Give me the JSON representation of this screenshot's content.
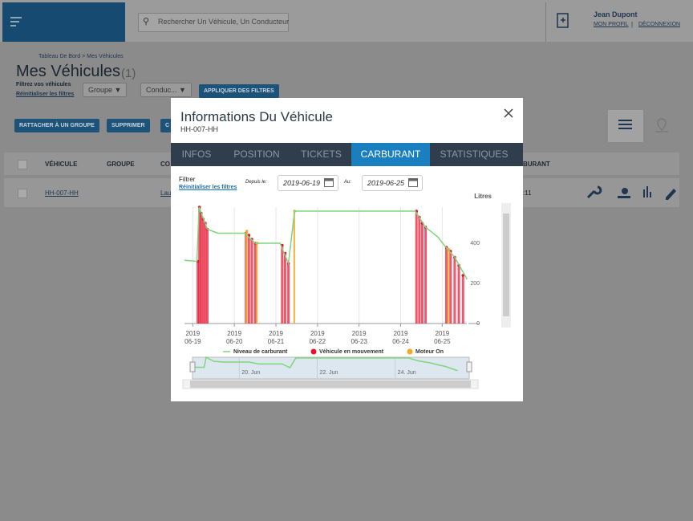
{
  "header": {
    "search_placeholder": "Rechercher Un Véhicule, Un Conducteur",
    "user_name": "Jean Dupont",
    "profile": "MON PROFIL",
    "separator": "|",
    "logout": "DÉCONNEXION"
  },
  "page": {
    "breadcrumb": "Tableau De Bord > Mes Véhicules",
    "title": "Mes Véhicules",
    "count": "(1)",
    "filter_label": "Filtrez vos véhicules",
    "reset": "Réinitialiser les filtres",
    "filters": [
      "Groupe",
      "Conduc..."
    ],
    "apply": "APPLIQUER DES FILTRES",
    "actions": [
      "RATTACHER À UN GROUPE",
      "SUPPRIMER",
      "C"
    ]
  },
  "table": {
    "headers": [
      "VÉHICULE",
      "GROUPE",
      "CO",
      "BURANT"
    ],
    "rows": [
      [
        "HH-007-HH",
        "Lau",
        ":11"
      ]
    ]
  },
  "modal": {
    "title": "Informations Du Véhicule",
    "subtitle": "HH-007-HH",
    "tabs": [
      "INFOS",
      "POSITION",
      "TICKETS",
      "CARBURANT",
      "STATISTIQUES"
    ],
    "active_tab": 3,
    "filter_label": "Filtrer",
    "reset": "Réinitialiser les filtres",
    "from_label": "Depuis le:",
    "from": "2019-06-19",
    "to_label": "Au:",
    "to": "2019-06-25"
  },
  "chart_data": {
    "type": "line",
    "y_label": "Litres",
    "xlim": [
      18.8,
      25.9
    ],
    "xticks": [
      {
        "value": 19,
        "label": "2019\n06-19"
      },
      {
        "value": 20,
        "label": "2019\n06-20"
      },
      {
        "value": 21,
        "label": "2019\n06-21"
      },
      {
        "value": 22,
        "label": "2019\n06-22"
      },
      {
        "value": 23,
        "label": "2019\n06-23"
      },
      {
        "value": 24,
        "label": "2019\n06-24"
      },
      {
        "value": 25,
        "label": "2019\n06-25"
      }
    ],
    "ylim": [
      0,
      580
    ],
    "yticks": [
      0,
      200,
      400
    ],
    "grid": true,
    "navigator_ticks": [
      {
        "value": 20,
        "label": "20. Jun"
      },
      {
        "value": 22,
        "label": "22. Jun"
      },
      {
        "value": 24,
        "label": "24. Jun"
      }
    ],
    "series": [
      {
        "name": "Niveau de carburant",
        "type": "line",
        "color": "#7ed67e",
        "x": [
          18.8,
          19.1,
          19.15,
          19.35,
          19.6,
          20.25,
          20.5,
          21.1,
          21.3,
          21.45,
          24.35,
          24.6,
          24.9,
          25.05,
          25.3,
          25.6
        ],
        "values": [
          315,
          310,
          580,
          470,
          450,
          450,
          400,
          400,
          300,
          560,
          560,
          480,
          430,
          390,
          330,
          220
        ]
      },
      {
        "name": "Véhicule en mouvement",
        "type": "bar",
        "color": "#e8112d",
        "x": [
          19.12,
          19.16,
          19.2,
          19.25,
          19.3,
          19.35,
          20.28,
          20.35,
          20.42,
          20.5,
          21.15,
          21.22,
          21.3,
          24.38,
          24.45,
          24.52,
          24.6,
          25.1,
          25.2,
          25.3,
          25.4,
          25.5
        ],
        "values": [
          310,
          580,
          550,
          520,
          500,
          470,
          450,
          440,
          420,
          400,
          390,
          350,
          300,
          560,
          530,
          500,
          480,
          380,
          360,
          330,
          290,
          240
        ]
      },
      {
        "name": "Moteur On",
        "type": "bar",
        "color": "#f5a623",
        "x": [
          20.3,
          20.55,
          21.45,
          25.15
        ],
        "values": [
          460,
          400,
          560,
          370
        ]
      }
    ]
  }
}
